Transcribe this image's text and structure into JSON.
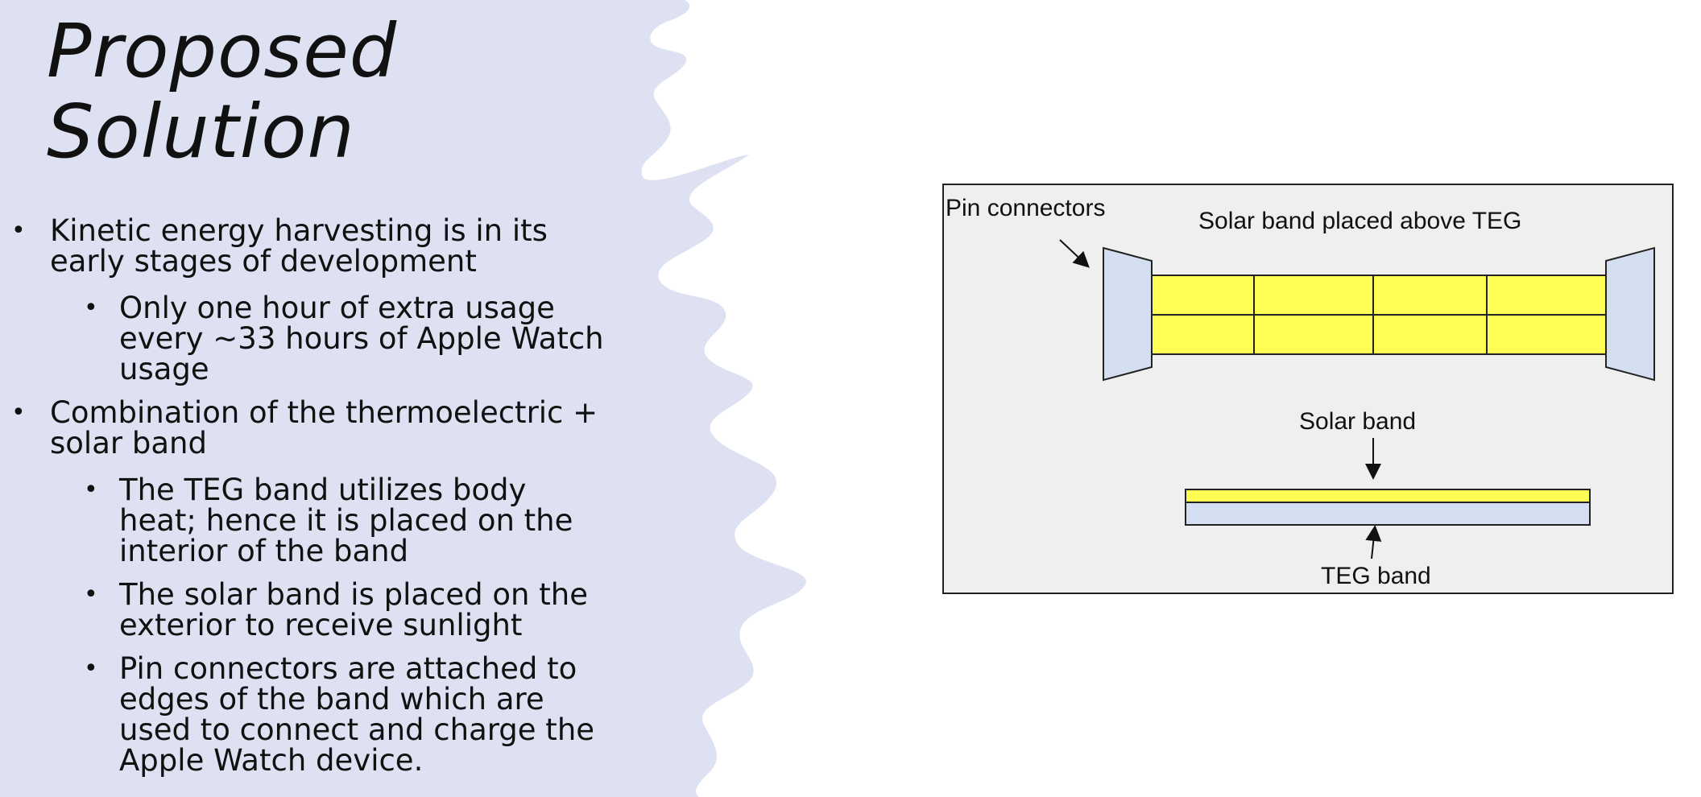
{
  "slide": {
    "title_line1": "Proposed",
    "title_line2": "Solution",
    "bullets": {
      "b1": "Kinetic energy harvesting is in its early stages of development",
      "b1_1": "Only one hour of extra usage every ~33 hours of Apple Watch usage",
      "b2": "Combination of the thermoelectric + solar band",
      "b2_1": "The TEG band utilizes body heat; hence it is placed on the interior of the band",
      "b2_2": "The solar band is placed on the exterior to receive sunlight",
      "b2_3": "Pin connectors are attached to edges of the band which are used to connect and charge the Apple Watch device."
    },
    "bullet_glyph": "•"
  },
  "diagram": {
    "label_pin_connectors": "Pin connectors",
    "label_solar_above": "Solar band placed above TEG",
    "label_solar_band": "Solar band",
    "label_teg_band": "TEG band",
    "colors": {
      "solar": "#ffff55",
      "teg": "#d3dff0",
      "panel": "#efefef",
      "bg_splash": "#dde1f1"
    }
  }
}
